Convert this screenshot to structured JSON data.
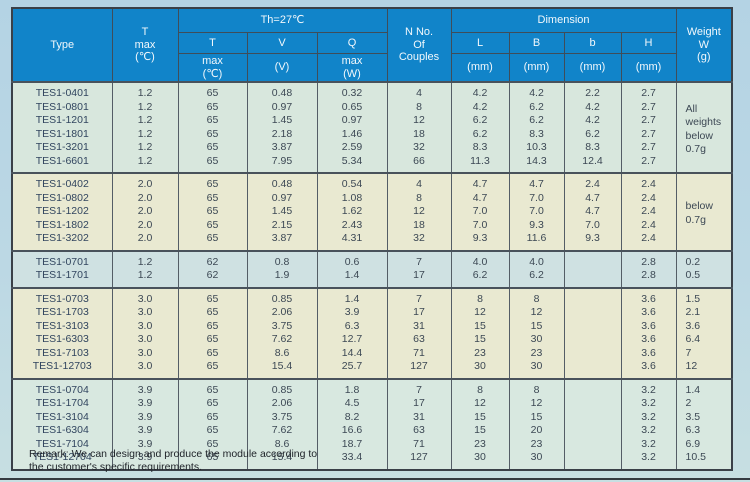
{
  "page": {
    "bg": "#b8d6e3",
    "header_blue": "#1184c9",
    "grid_line": "#545d66",
    "remark_line1": "Remark: We can design and produce the module according to",
    "remark_line2": "the customer's specific requirements."
  },
  "header": {
    "type": "Type",
    "t_max": "T\nmax\n(℃)",
    "th_group": "Th=27℃",
    "sub_top": [
      "T",
      "V",
      "Q"
    ],
    "sub_bottom": [
      "max\n(℃)",
      "(V)",
      "max\n(W)"
    ],
    "couples": "N No.\nOf\nCouples",
    "dimension": "Dimension",
    "dim_cols": [
      "L",
      "B",
      "b",
      "H"
    ],
    "dim_unit": "(mm)",
    "weight": "Weight\nW\n(g)"
  },
  "table": {
    "columns": [
      "Type",
      "T max (℃)",
      "T max (℃)",
      "V (V)",
      "Q max (W)",
      "N No. Of Couples",
      "L (mm)",
      "B (mm)",
      "b (mm)",
      "H (mm)",
      "Weight W (g)"
    ],
    "blocks": [
      {
        "bg": "#d8e7dd",
        "weight_note": "All\nweights\nbelow\n0.7g",
        "rows": [
          [
            "TES1-0401",
            "1.2",
            "65",
            "0.48",
            "0.32",
            "4",
            "4.2",
            "4.2",
            "2.2",
            "2.7"
          ],
          [
            "TES1-0801",
            "1.2",
            "65",
            "0.97",
            "0.65",
            "8",
            "4.2",
            "6.2",
            "4.2",
            "2.7"
          ],
          [
            "TES1-1201",
            "1.2",
            "65",
            "1.45",
            "0.97",
            "12",
            "6.2",
            "6.2",
            "4.2",
            "2.7"
          ],
          [
            "TES1-1801",
            "1.2",
            "65",
            "2.18",
            "1.46",
            "18",
            "6.2",
            "8.3",
            "6.2",
            "2.7"
          ],
          [
            "TES1-3201",
            "1.2",
            "65",
            "3.87",
            "2.59",
            "32",
            "8.3",
            "10.3",
            "8.3",
            "2.7"
          ],
          [
            "TES1-6601",
            "1.2",
            "65",
            "7.95",
            "5.34",
            "66",
            "11.3",
            "14.3",
            "12.4",
            "2.7"
          ]
        ]
      },
      {
        "bg": "#e9e9d1",
        "weight_note": "below\n0.7g",
        "rows": [
          [
            "TES1-0402",
            "2.0",
            "65",
            "0.48",
            "0.54",
            "4",
            "4.7",
            "4.7",
            "2.4",
            "2.4"
          ],
          [
            "TES1-0802",
            "2.0",
            "65",
            "0.97",
            "1.08",
            "8",
            "4.7",
            "7.0",
            "4.7",
            "2.4"
          ],
          [
            "TES1-1202",
            "2.0",
            "65",
            "1.45",
            "1.62",
            "12",
            "7.0",
            "7.0",
            "4.7",
            "2.4"
          ],
          [
            "TES1-1802",
            "2.0",
            "65",
            "2.15",
            "2.43",
            "18",
            "7.0",
            "9.3",
            "7.0",
            "2.4"
          ],
          [
            "TES1-3202",
            "2.0",
            "65",
            "3.87",
            "4.31",
            "32",
            "9.3",
            "11.6",
            "9.3",
            "2.4"
          ]
        ]
      },
      {
        "bg": "#cfe1e2",
        "weight_note": null,
        "rows": [
          [
            "TES1-0701",
            "1.2",
            "62",
            "0.8",
            "0.6",
            "7",
            "4.0",
            "4.0",
            "",
            "2.8",
            "0.2"
          ],
          [
            "TES1-1701",
            "1.2",
            "62",
            "1.9",
            "1.4",
            "17",
            "6.2",
            "6.2",
            "",
            "2.8",
            "0.5"
          ]
        ]
      },
      {
        "bg": "#e9e9d1",
        "weight_note": null,
        "rows": [
          [
            "TES1-0703",
            "3.0",
            "65",
            "0.85",
            "1.4",
            "7",
            "8",
            "8",
            "",
            "3.6",
            "1.5"
          ],
          [
            "TES1-1703",
            "3.0",
            "65",
            "2.06",
            "3.9",
            "17",
            "12",
            "12",
            "",
            "3.6",
            "2.1"
          ],
          [
            "TES1-3103",
            "3.0",
            "65",
            "3.75",
            "6.3",
            "31",
            "15",
            "15",
            "",
            "3.6",
            "3.6"
          ],
          [
            "TES1-6303",
            "3.0",
            "65",
            "7.62",
            "12.7",
            "63",
            "15",
            "30",
            "",
            "3.6",
            "6.4"
          ],
          [
            "TES1-7103",
            "3.0",
            "65",
            "8.6",
            "14.4",
            "71",
            "23",
            "23",
            "",
            "3.6",
            "7"
          ],
          [
            "TES1-12703",
            "3.0",
            "65",
            "15.4",
            "25.7",
            "127",
            "30",
            "30",
            "",
            "3.6",
            "12"
          ]
        ]
      },
      {
        "bg": "#d8e8e0",
        "weight_note": null,
        "rows": [
          [
            "TES1-0704",
            "3.9",
            "65",
            "0.85",
            "1.8",
            "7",
            "8",
            "8",
            "",
            "3.2",
            "1.4"
          ],
          [
            "TES1-1704",
            "3.9",
            "65",
            "2.06",
            "4.5",
            "17",
            "12",
            "12",
            "",
            "3.2",
            "2"
          ],
          [
            "TES1-3104",
            "3.9",
            "65",
            "3.75",
            "8.2",
            "31",
            "15",
            "15",
            "",
            "3.2",
            "3.5"
          ],
          [
            "TES1-6304",
            "3.9",
            "65",
            "7.62",
            "16.6",
            "63",
            "15",
            "20",
            "",
            "3.2",
            "6.3"
          ],
          [
            "TES1-7104",
            "3.9",
            "65",
            "8.6",
            "18.7",
            "71",
            "23",
            "23",
            "",
            "3.2",
            "6.9"
          ],
          [
            "TES1-12704",
            "3.9",
            "65",
            "15.4",
            "33.4",
            "127",
            "30",
            "30",
            "",
            "3.2",
            "10.5"
          ]
        ]
      }
    ]
  }
}
